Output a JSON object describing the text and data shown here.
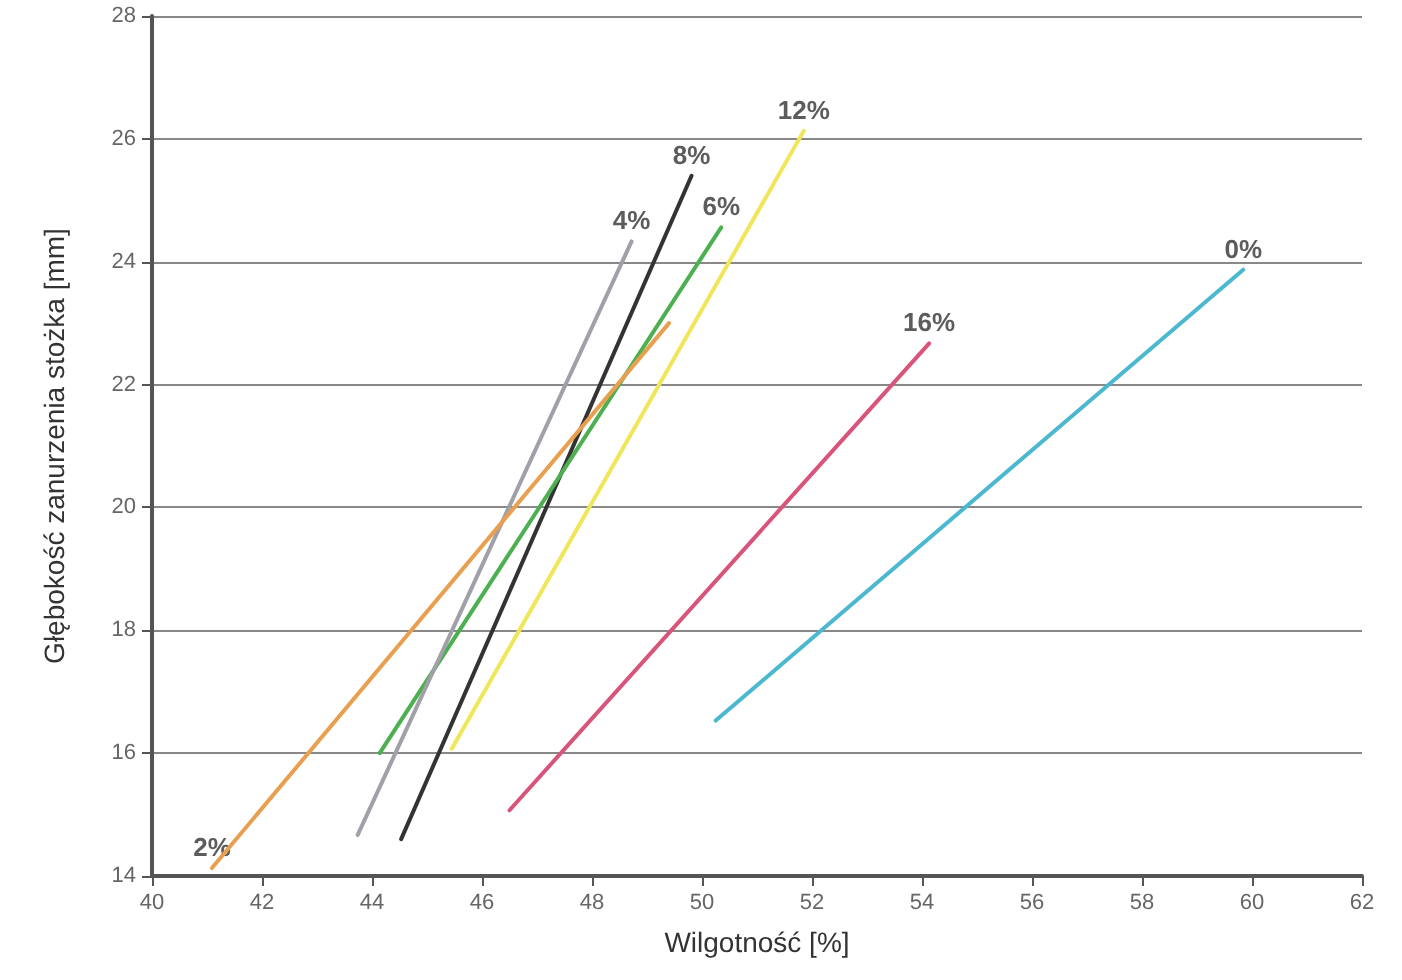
{
  "chart_data": {
    "type": "line",
    "xlabel": "Wilgotność [%]",
    "ylabel": "Głębokość zanurzenia stożka [mm]",
    "xlim": [
      40,
      62
    ],
    "xticks": [
      40,
      42,
      44,
      46,
      48,
      50,
      52,
      54,
      56,
      58,
      60,
      62
    ],
    "ylim": [
      14,
      28
    ],
    "yticks": [
      14,
      16,
      18,
      20,
      22,
      24,
      26,
      28
    ],
    "grid": "y",
    "marker": "none",
    "line_style": "solid",
    "series": [
      {
        "color": "#4bb8d0",
        "x": [
          50.25,
          59.84
        ],
        "values": [
          16.53,
          23.87
        ]
      },
      {
        "color": "#d9547a",
        "x": [
          46.5,
          54.13
        ],
        "values": [
          15.07,
          22.67
        ]
      },
      {
        "color": "#f0e65a",
        "x": [
          45.45,
          51.85
        ],
        "values": [
          16.07,
          26.13
        ]
      },
      {
        "color": "#333333",
        "x": [
          44.53,
          49.81
        ],
        "values": [
          14.6,
          25.4
        ]
      },
      {
        "color": "#4caf50",
        "x": [
          44.14,
          50.35
        ],
        "values": [
          16.0,
          24.56
        ]
      },
      {
        "color": "#a0a0a8",
        "x": [
          43.74,
          48.72
        ],
        "values": [
          14.67,
          24.33
        ]
      },
      {
        "color": "#e8a050",
        "x": [
          41.09,
          49.4
        ],
        "values": [
          14.13,
          23.0
        ]
      }
    ],
    "annotations": [
      {
        "text": "0%",
        "x": 59.84,
        "y": 23.87
      },
      {
        "text": "16%",
        "x": 54.13,
        "y": 22.67
      },
      {
        "text": "12%",
        "x": 51.85,
        "y": 26.13
      },
      {
        "text": "8%",
        "x": 49.81,
        "y": 25.4
      },
      {
        "text": "6%",
        "x": 50.35,
        "y": 24.56
      },
      {
        "text": "4%",
        "x": 48.72,
        "y": 24.33
      },
      {
        "text": "2%",
        "x": 41.09,
        "y": 14.13
      }
    ]
  }
}
